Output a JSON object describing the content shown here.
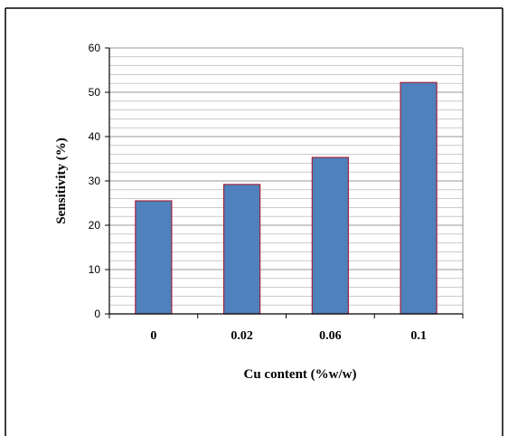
{
  "chart_data": {
    "type": "bar",
    "categories": [
      "0",
      "0.02",
      "0.06",
      "0.1"
    ],
    "values": [
      25.5,
      29.2,
      35.3,
      52.2
    ],
    "title": "",
    "xlabel": "Cu  content (%w/w)",
    "ylabel": "Sensitivity (%)",
    "ylim": [
      0,
      60
    ],
    "yticks": [
      "0",
      "10",
      "20",
      "30",
      "40",
      "50",
      "60"
    ],
    "grid": true,
    "legend": "none",
    "colors": {
      "bar_fill": "#4f81bd",
      "bar_stroke": "#a0253a",
      "grid": "#8c8c8c",
      "axis": "#000000",
      "frame": "#000000"
    }
  }
}
